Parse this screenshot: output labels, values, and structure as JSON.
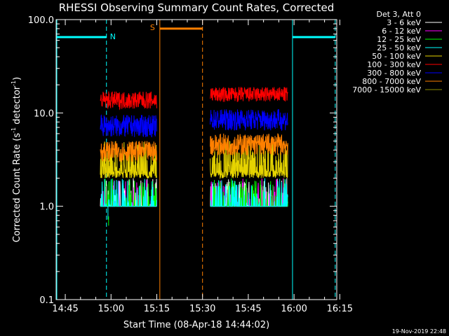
{
  "chart_data": {
    "type": "line",
    "title": "RHESSI Observing Summary Count Rates, Corrected",
    "xlabel": "Start Time (08-Apr-18 14:44:02)",
    "ylabel_main": "Corrected Count Rate (s",
    "ylabel_sup1": "-1",
    "ylabel_mid": " detector",
    "ylabel_sup2": "-1",
    "ylabel_end": ")",
    "y_scale": "log",
    "ylim": [
      0.1,
      100.0
    ],
    "xlim_minutes": [
      -2,
      90
    ],
    "x_ticks": [
      {
        "label": "14:45",
        "minute": 1
      },
      {
        "label": "15:00",
        "minute": 16
      },
      {
        "label": "15:15",
        "minute": 31
      },
      {
        "label": "15:30",
        "minute": 46
      },
      {
        "label": "15:45",
        "minute": 61
      },
      {
        "label": "16:00",
        "minute": 76
      },
      {
        "label": "16:15",
        "minute": 91
      }
    ],
    "y_ticks": [
      {
        "label": "0.1",
        "value": 0.1
      },
      {
        "label": "1.0",
        "value": 1.0
      },
      {
        "label": "10.0",
        "value": 10.0
      },
      {
        "label": "100.0",
        "value": 100.0
      }
    ],
    "legend_title": "Det 3, Att 0",
    "legend_placement": "outside-right",
    "series": [
      {
        "name": "3 - 6 keV",
        "color": "#ffffff",
        "segments": [
          {
            "start": 12.5,
            "end": 31,
            "low": 1.0,
            "high": 2.0
          },
          {
            "start": 48.5,
            "end": 74,
            "low": 1.0,
            "high": 2.0
          }
        ]
      },
      {
        "name": "6 - 12 keV",
        "color": "#ff00ff",
        "segments": [
          {
            "start": 12.5,
            "end": 31,
            "low": 1.0,
            "high": 2.0
          },
          {
            "start": 48.5,
            "end": 74,
            "low": 1.0,
            "high": 2.0
          }
        ]
      },
      {
        "name": "12 - 25 keV",
        "color": "#00ff00",
        "segments": [
          {
            "start": 12.5,
            "end": 31,
            "low": 1.0,
            "high": 2.0
          },
          {
            "start": 48.5,
            "end": 74,
            "low": 1.0,
            "high": 2.0
          }
        ]
      },
      {
        "name": "25 - 50 keV",
        "color": "#00ffff",
        "segments": [
          {
            "start": 12.5,
            "end": 31,
            "low": 1.0,
            "high": 2.0
          },
          {
            "start": 48.5,
            "end": 74,
            "low": 1.0,
            "high": 2.0
          }
        ]
      },
      {
        "name": "50 - 100 keV",
        "color": "#e6d400",
        "segments": [
          {
            "start": 12.5,
            "end": 31,
            "low": 2.0,
            "high": 5.0
          },
          {
            "start": 48.5,
            "end": 74,
            "low": 2.0,
            "high": 5.0
          }
        ]
      },
      {
        "name": "100 - 300 keV",
        "color": "#ff0000",
        "segments": [
          {
            "start": 12.5,
            "end": 31,
            "low": 11.0,
            "high": 17.0
          },
          {
            "start": 48.5,
            "end": 74,
            "low": 13.0,
            "high": 19.0
          }
        ]
      },
      {
        "name": "300 - 800 keV",
        "color": "#0000ff",
        "segments": [
          {
            "start": 12.5,
            "end": 31,
            "low": 5.5,
            "high": 9.5
          },
          {
            "start": 48.5,
            "end": 74,
            "low": 6.5,
            "high": 11.0
          }
        ]
      },
      {
        "name": "800 - 7000 keV",
        "color": "#ff8000",
        "segments": [
          {
            "start": 12.5,
            "end": 31,
            "low": 3.0,
            "high": 5.0
          },
          {
            "start": 48.5,
            "end": 74,
            "low": 3.5,
            "high": 6.0
          }
        ]
      },
      {
        "name": "7000 - 15000 keV",
        "color": "#8b8b00",
        "segments": []
      }
    ],
    "annotations": [
      {
        "label": "N",
        "color": "#00ffff",
        "bar_ranges_min": [
          [
            -2,
            14.5
          ],
          [
            75.5,
            89.5
          ]
        ],
        "solid_lines_min": [
          -2,
          75.5
        ],
        "dashed_lines_min": [
          14.5,
          89.5
        ],
        "bar_value": 65
      },
      {
        "label": "S",
        "color": "#ff8000",
        "bar_ranges_min": [
          [
            32,
            46
          ]
        ],
        "solid_lines_min": [
          32
        ],
        "dashed_lines_min": [
          46
        ],
        "bar_value": 80
      }
    ],
    "footer_timestamp": "19-Nov-2019 22:48"
  }
}
